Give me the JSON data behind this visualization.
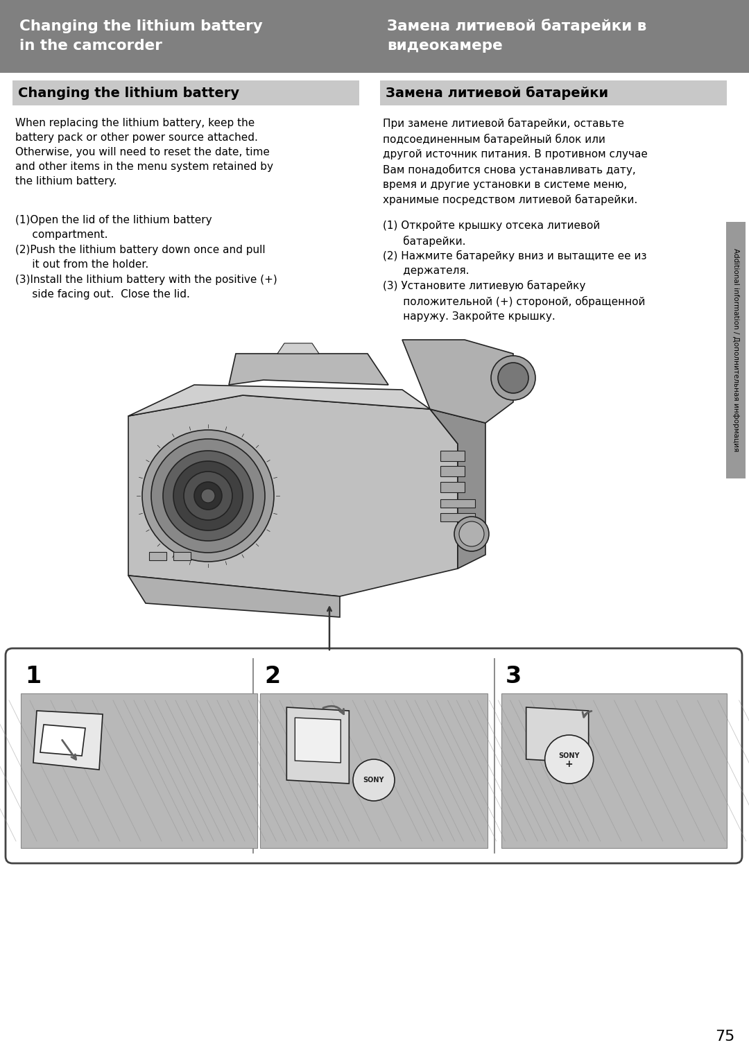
{
  "page_width": 10.8,
  "page_height": 15.33,
  "dpi": 100,
  "bg_color": "#ffffff",
  "header_bg": "#808080",
  "header_text_color": "#ffffff",
  "header_left_title": "Changing the lithium battery\nin the camcorder",
  "header_right_title": "Замена литиевой батарейки в\nвидеокамере",
  "section_header_bg": "#c8c8c8",
  "section_header_text": "#000000",
  "section_left_title": "Changing the lithium battery",
  "section_right_title": "Замена литиевой батарейки",
  "left_body_para": "When replacing the lithium battery, keep the\nbattery pack or other power source attached.\nOtherwise, you will need to reset the date, time\nand other items in the menu system retained by\nthe lithium battery.",
  "left_body_steps": [
    [
      "(1)",
      "Open the lid of the lithium battery\n     compartment."
    ],
    [
      "(2)",
      "Push the lithium battery down once and pull\n     it out from the holder."
    ],
    [
      "(3)",
      "Install the lithium battery with the positive (+)\n     side facing out.  Close the lid."
    ]
  ],
  "right_body_para": "При замене литиевой батарейки, оставьте\nподсоединенным батарейный блок или\nдругой источник питания. В противном случае\nВам понадобится снова устанавливать дату,\nвремя и другие установки в системе меню,\nхранимые посредством литиевой батарейки.",
  "right_body_steps": [
    [
      "(1)",
      "Откройте крышку отсека литиевой\n      батарейки."
    ],
    [
      "(2)",
      "Нажмите батарейку вниз и вытащите ее из\n      держателя."
    ],
    [
      "(3)",
      "Установите литиевую батарейку\n      положительной (+) стороной, обращенной\n      наружу. Закройте крышку."
    ]
  ],
  "sidebar_text": "Additional information / Дополнительная информация",
  "page_number": "75",
  "step_labels": [
    "1",
    "2",
    "3"
  ],
  "cam_color": "#c0c0c0",
  "cam_dark": "#909090",
  "cam_line": "#222222",
  "step_bg": "#b8b8b8",
  "panel_border": "#444444"
}
